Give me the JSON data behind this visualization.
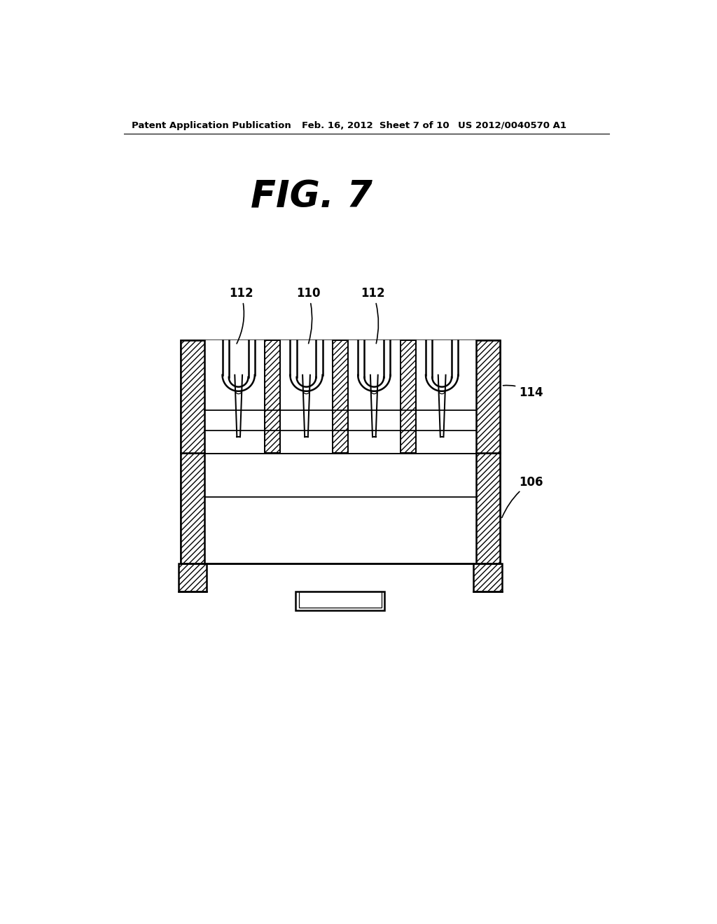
{
  "bg_color": "#ffffff",
  "line_color": "#000000",
  "header_left": "Patent Application Publication",
  "header_mid": "Feb. 16, 2012  Sheet 7 of 10",
  "header_right": "US 2012/0040570 A1",
  "fig_label": "FIG. 7",
  "label_112_left": "112",
  "label_110": "110",
  "label_112_right": "112",
  "label_114": "114",
  "label_106": "106",
  "lw": 1.8
}
